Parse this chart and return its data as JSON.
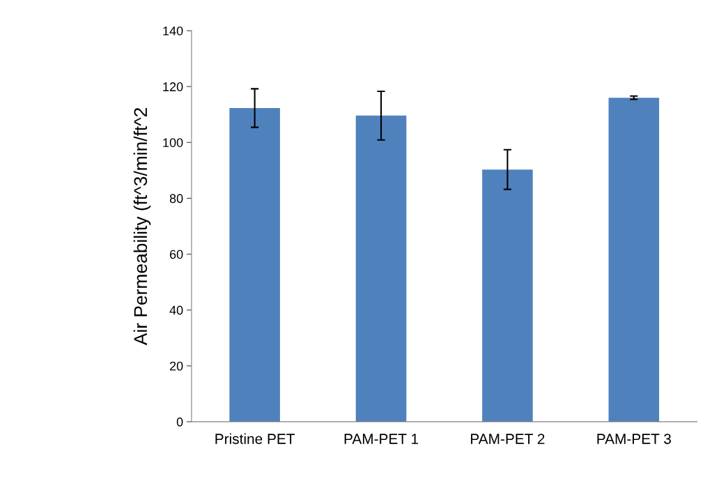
{
  "chart_data": {
    "type": "bar",
    "ylabel": "Air Permeability (ft^3/min/ft^2",
    "categories": [
      "Pristine PET",
      "PAM-PET 1",
      "PAM-PET 2",
      "PAM-PET 3"
    ],
    "values": [
      112.3,
      109.6,
      90.3,
      116.0
    ],
    "errors": [
      6.9,
      8.7,
      7.1,
      0.6
    ],
    "color": "#4f81bd",
    "ylim": [
      0,
      140
    ],
    "yticks": [
      0,
      20,
      40,
      60,
      80,
      100,
      120,
      140
    ],
    "grid": false
  }
}
